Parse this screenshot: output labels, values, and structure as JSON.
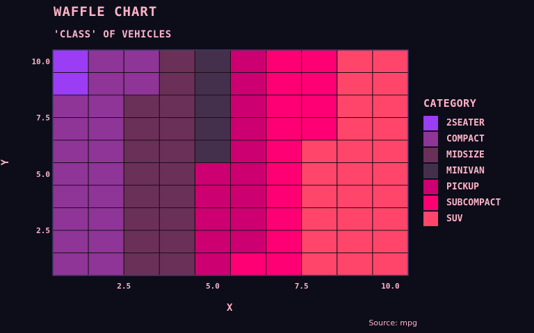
{
  "chart_data": {
    "type": "heatmap",
    "title": "WAFFLE CHART",
    "subtitle": "'CLASS' OF VEHICLES",
    "xlabel": "X",
    "ylabel": "Y",
    "caption": "Source: mpg",
    "legend_title": "CATEGORY",
    "legend_position": "right",
    "grid": true,
    "xlim": [
      0.5,
      10.5
    ],
    "ylim": [
      10.5,
      0.5
    ],
    "x_ticks": [
      {
        "value": 2.5,
        "label": "2.5"
      },
      {
        "value": 5.0,
        "label": "5.0"
      },
      {
        "value": 7.5,
        "label": "7.5"
      },
      {
        "value": 10.0,
        "label": "10.0"
      }
    ],
    "y_ticks": [
      {
        "value": 2.5,
        "label": "2.5"
      },
      {
        "value": 5.0,
        "label": "5.0"
      },
      {
        "value": 7.5,
        "label": "7.5"
      },
      {
        "value": 10.0,
        "label": "10.0"
      }
    ],
    "categories": [
      {
        "name": "2SEATER",
        "color": "#9b3df5"
      },
      {
        "name": "COMPACT",
        "color": "#8e3597"
      },
      {
        "name": "MIDSIZE",
        "color": "#6b3057"
      },
      {
        "name": "MINIVAN",
        "color": "#44304d"
      },
      {
        "name": "PICKUP",
        "color": "#cc0070"
      },
      {
        "name": "SUBCOMPACT",
        "color": "#ff0074"
      },
      {
        "name": "SUV",
        "color": "#ff466a"
      }
    ],
    "cells": [
      [
        0,
        1,
        1,
        2,
        3,
        4,
        5,
        5,
        6,
        6
      ],
      [
        0,
        1,
        1,
        2,
        3,
        4,
        5,
        5,
        6,
        6
      ],
      [
        1,
        1,
        2,
        2,
        3,
        4,
        5,
        5,
        6,
        6
      ],
      [
        1,
        1,
        2,
        2,
        3,
        4,
        5,
        5,
        6,
        6
      ],
      [
        1,
        1,
        2,
        2,
        3,
        4,
        5,
        6,
        6,
        6
      ],
      [
        1,
        1,
        2,
        2,
        4,
        4,
        5,
        6,
        6,
        6
      ],
      [
        1,
        1,
        2,
        2,
        4,
        4,
        5,
        6,
        6,
        6
      ],
      [
        1,
        1,
        2,
        2,
        4,
        4,
        5,
        6,
        6,
        6
      ],
      [
        1,
        1,
        2,
        2,
        4,
        4,
        5,
        6,
        6,
        6
      ],
      [
        1,
        1,
        2,
        2,
        4,
        5,
        5,
        6,
        6,
        6
      ]
    ]
  }
}
